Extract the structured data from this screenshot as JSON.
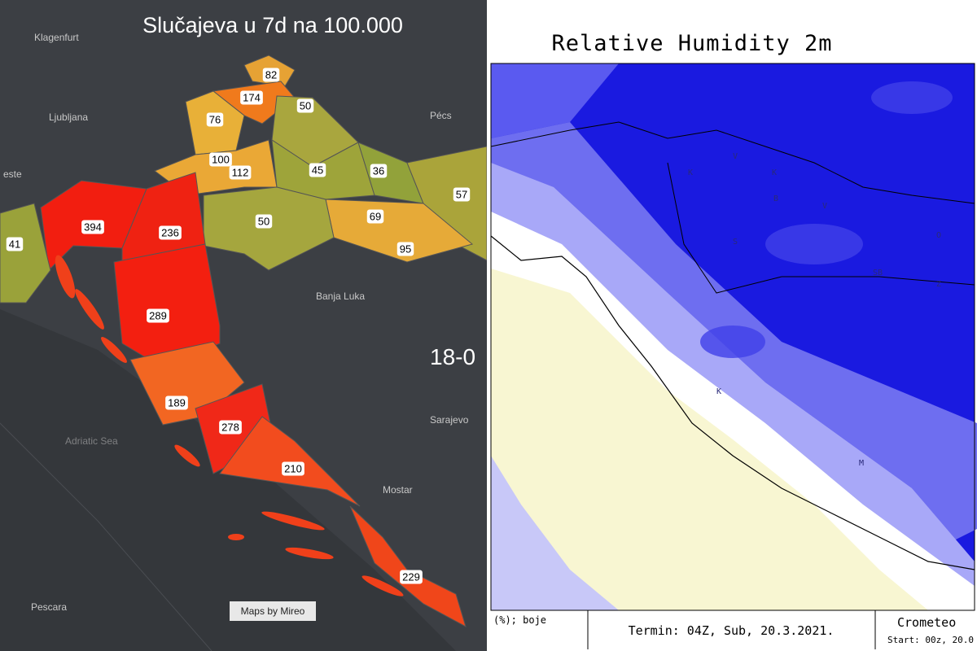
{
  "left_map": {
    "title": "Slučajeva u 7d na 100.000",
    "place_labels": [
      "Klagenfurt",
      "Ljubljana",
      "Pécs",
      "este",
      "Banja Luka",
      "Sarajevo",
      "Mostar",
      "Adriatic Sea",
      "Pescara"
    ],
    "date_label": "18-0",
    "attribution": "Maps by Mireo",
    "county_values": [
      82,
      174,
      50,
      76,
      100,
      112,
      45,
      36,
      57,
      394,
      236,
      50,
      69,
      95,
      41,
      289,
      189,
      278,
      210,
      229
    ]
  },
  "right_map": {
    "title": "Relative Humidity 2m",
    "map_letters": [
      "K",
      "V",
      "K",
      "B",
      "V",
      "O",
      "S",
      "SB",
      "Z",
      "K",
      "M"
    ],
    "footer": {
      "unit": "(%); boje",
      "termin": "Termin: 04Z, Sub, 20.3.2021.",
      "brand": "Crometeo",
      "start": "Start: 00z, 20.0"
    }
  }
}
